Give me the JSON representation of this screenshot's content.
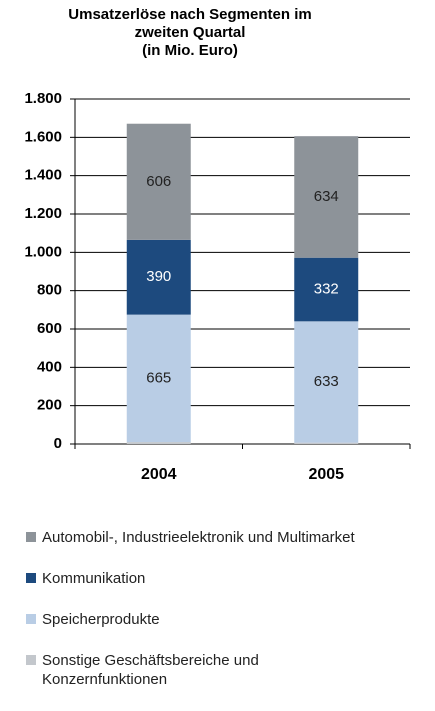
{
  "chart_data": {
    "type": "stacked_bar",
    "title": "Umsatzerlöse nach Segmenten im\nzweiten Quartal\n(in Mio. Euro)",
    "categories": [
      "2004",
      "2005"
    ],
    "series": [
      {
        "name": "Sonstige Geschäftsbereiche und Konzernfunktionen",
        "color": "#c3c7cc",
        "values": [
          10,
          7
        ]
      },
      {
        "name": "Speicherprodukte",
        "color": "#b9cde5",
        "values": [
          665,
          633
        ]
      },
      {
        "name": "Kommunikation",
        "color": "#1d4a7e",
        "values": [
          390,
          332
        ]
      },
      {
        "name": "Automobil-, Industrieelektronik und Multimarket",
        "color": "#8d9399",
        "values": [
          606,
          634
        ]
      }
    ],
    "legend_order": [
      3,
      2,
      1,
      0
    ],
    "ylim": [
      0,
      1800
    ],
    "yticks": [
      0,
      200,
      400,
      600,
      800,
      {
        "value": 1000,
        "label": "1.000"
      },
      {
        "value": 1200,
        "label": "1.200"
      },
      {
        "value": 1400,
        "label": "1.400"
      },
      {
        "value": 1600,
        "label": "1.600"
      },
      {
        "value": 1800,
        "label": "1.800"
      }
    ],
    "grid": true
  }
}
